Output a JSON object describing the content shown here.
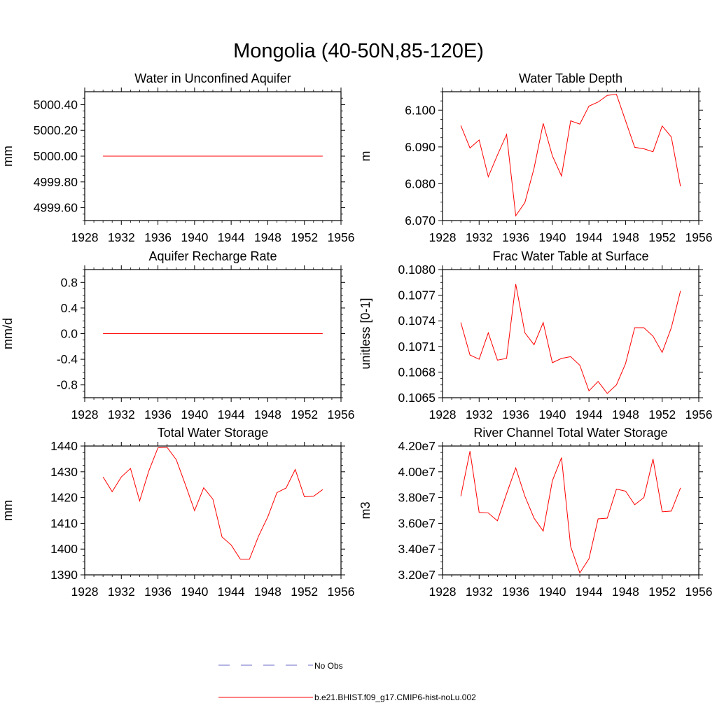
{
  "title": "Mongolia (40-50N,85-120E)",
  "line_color": "#ff0000",
  "obs_color": "#6b6bc8",
  "legend": {
    "obs_label": "No Obs",
    "model_label": "b.e21.BHIST.f09_g17.CMIP6-hist-noLu.002"
  },
  "chart_data": [
    {
      "type": "line",
      "title": "Water in Unconfined Aquifer",
      "ylabel": "mm",
      "xlim": [
        1928,
        1956
      ],
      "ylim": [
        4999.5,
        5000.5
      ],
      "xticks": [
        1928,
        1932,
        1936,
        1940,
        1944,
        1948,
        1952,
        1956
      ],
      "xtick_labels": [
        "1928",
        "1932",
        "1936",
        "1940",
        "1944",
        "1948",
        "1952",
        "1956"
      ],
      "yticks": [
        4999.6,
        4999.8,
        5000.0,
        5000.2,
        5000.4
      ],
      "ytick_labels": [
        "4999.60",
        "4999.80",
        "5000.00",
        "5000.20",
        "5000.40"
      ],
      "x": [
        1930,
        1954
      ],
      "series": [
        {
          "values": [
            5000.0,
            5000.0
          ]
        }
      ]
    },
    {
      "type": "line",
      "title": "Water Table Depth",
      "ylabel": "m",
      "xlim": [
        1928,
        1956
      ],
      "ylim": [
        6.07,
        6.105
      ],
      "xticks": [
        1928,
        1932,
        1936,
        1940,
        1944,
        1948,
        1952,
        1956
      ],
      "xtick_labels": [
        "1928",
        "1932",
        "1936",
        "1940",
        "1944",
        "1948",
        "1952",
        "1956"
      ],
      "yticks": [
        6.07,
        6.08,
        6.09,
        6.1
      ],
      "ytick_labels": [
        "6.070",
        "6.080",
        "6.090",
        "6.100"
      ],
      "x": [
        1930,
        1931,
        1932,
        1933,
        1934,
        1935,
        1936,
        1937,
        1938,
        1939,
        1940,
        1941,
        1942,
        1943,
        1944,
        1945,
        1946,
        1947,
        1948,
        1949,
        1950,
        1951,
        1952,
        1953,
        1954
      ],
      "series": [
        {
          "values": [
            6.0958,
            6.0897,
            6.0919,
            6.0819,
            6.0878,
            6.0934,
            6.0713,
            6.0749,
            6.0842,
            6.0964,
            6.0876,
            6.0821,
            6.0971,
            6.0962,
            6.1011,
            6.1022,
            6.104,
            6.1043,
            6.0971,
            6.0899,
            6.0895,
            6.0887,
            6.0957,
            6.0927,
            6.0793
          ]
        }
      ]
    },
    {
      "type": "line",
      "title": "Aquifer Recharge Rate",
      "ylabel": "mm/d",
      "xlim": [
        1928,
        1956
      ],
      "ylim": [
        -1.0,
        1.0
      ],
      "xticks": [
        1928,
        1932,
        1936,
        1940,
        1944,
        1948,
        1952,
        1956
      ],
      "xtick_labels": [
        "1928",
        "1932",
        "1936",
        "1940",
        "1944",
        "1948",
        "1952",
        "1956"
      ],
      "yticks": [
        -0.8,
        -0.4,
        0.0,
        0.4,
        0.8
      ],
      "ytick_labels": [
        "-0.8",
        "-0.4",
        "0.0",
        "0.4",
        "0.8"
      ],
      "x": [
        1930,
        1954
      ],
      "series": [
        {
          "values": [
            0.0,
            0.0
          ]
        }
      ]
    },
    {
      "type": "line",
      "title": "Frac Water Table at Surface",
      "ylabel": "unitless [0-1]",
      "xlim": [
        1928,
        1956
      ],
      "ylim": [
        0.1065,
        0.108
      ],
      "xticks": [
        1928,
        1932,
        1936,
        1940,
        1944,
        1948,
        1952,
        1956
      ],
      "xtick_labels": [
        "1928",
        "1932",
        "1936",
        "1940",
        "1944",
        "1948",
        "1952",
        "1956"
      ],
      "yticks": [
        0.1065,
        0.1068,
        0.1071,
        0.1074,
        0.1077,
        0.108
      ],
      "ytick_labels": [
        "0.1065",
        "0.1068",
        "0.1071",
        "0.1074",
        "0.1077",
        "0.1080"
      ],
      "x": [
        1930,
        1931,
        1932,
        1933,
        1934,
        1935,
        1936,
        1937,
        1938,
        1939,
        1940,
        1941,
        1942,
        1943,
        1944,
        1945,
        1946,
        1947,
        1948,
        1949,
        1950,
        1951,
        1952,
        1953,
        1954
      ],
      "series": [
        {
          "values": [
            0.10738,
            0.107,
            0.10695,
            0.10726,
            0.10694,
            0.10696,
            0.10783,
            0.10726,
            0.10712,
            0.10738,
            0.10691,
            0.10696,
            0.10698,
            0.10688,
            0.10658,
            0.10669,
            0.10655,
            0.10665,
            0.1069,
            0.10732,
            0.10732,
            0.10722,
            0.10703,
            0.10732,
            0.10775
          ]
        }
      ]
    },
    {
      "type": "line",
      "title": "Total Water Storage",
      "ylabel": "mm",
      "xlim": [
        1928,
        1956
      ],
      "ylim": [
        1390,
        1440
      ],
      "xticks": [
        1928,
        1932,
        1936,
        1940,
        1944,
        1948,
        1952,
        1956
      ],
      "xtick_labels": [
        "1928",
        "1932",
        "1936",
        "1940",
        "1944",
        "1948",
        "1952",
        "1956"
      ],
      "yticks": [
        1390,
        1400,
        1410,
        1420,
        1430,
        1440
      ],
      "ytick_labels": [
        "1390",
        "1400",
        "1410",
        "1420",
        "1430",
        "1440"
      ],
      "x": [
        1930,
        1931,
        1932,
        1933,
        1934,
        1935,
        1936,
        1937,
        1938,
        1939,
        1940,
        1941,
        1942,
        1943,
        1944,
        1945,
        1946,
        1947,
        1948,
        1949,
        1950,
        1951,
        1952,
        1953,
        1954
      ],
      "series": [
        {
          "values": [
            1428,
            1422.3,
            1428,
            1431.3,
            1418.7,
            1430.3,
            1439.3,
            1439.5,
            1434.7,
            1425,
            1414.9,
            1423.8,
            1419.4,
            1404.7,
            1401.6,
            1396.1,
            1396.1,
            1405.1,
            1412.5,
            1421.9,
            1423.7,
            1430.9,
            1420.3,
            1420.5,
            1423.1
          ]
        }
      ]
    },
    {
      "type": "line",
      "title": "River Channel Total Water Storage",
      "ylabel": "m3",
      "xlim": [
        1928,
        1956
      ],
      "ylim": [
        32000000.0,
        42000000.0
      ],
      "xticks": [
        1928,
        1932,
        1936,
        1940,
        1944,
        1948,
        1952,
        1956
      ],
      "xtick_labels": [
        "1928",
        "1932",
        "1936",
        "1940",
        "1944",
        "1948",
        "1952",
        "1956"
      ],
      "yticks": [
        32000000.0,
        34000000.0,
        36000000.0,
        38000000.0,
        40000000.0,
        42000000.0
      ],
      "ytick_labels": [
        "3.20e7",
        "3.40e7",
        "3.60e7",
        "3.80e7",
        "4.00e7",
        "4.20e7"
      ],
      "x": [
        1930,
        1931,
        1932,
        1933,
        1934,
        1935,
        1936,
        1937,
        1938,
        1939,
        1940,
        1941,
        1942,
        1943,
        1944,
        1945,
        1946,
        1947,
        1948,
        1949,
        1950,
        1951,
        1952,
        1953,
        1954
      ],
      "series": [
        {
          "values": [
            38100000.0,
            41600000.0,
            36850000.0,
            36800000.0,
            36200000.0,
            38300000.0,
            40300000.0,
            38100000.0,
            36400000.0,
            35400000.0,
            39300000.0,
            41100000.0,
            34200000.0,
            32150000.0,
            33250000.0,
            36350000.0,
            36400000.0,
            38650000.0,
            38500000.0,
            37450000.0,
            38000000.0,
            41000000.0,
            36900000.0,
            36950000.0,
            38750000.0
          ]
        }
      ]
    }
  ]
}
